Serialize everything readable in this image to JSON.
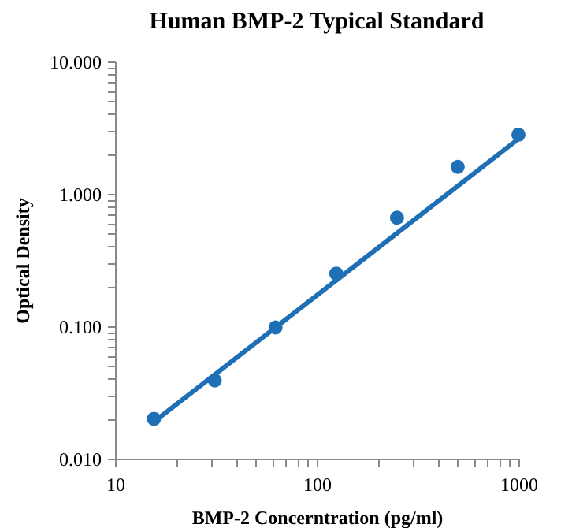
{
  "chart_data": {
    "type": "scatter",
    "title": "Human BMP-2 Typical Standard",
    "xlabel": "BMP-2 Concerntration (pg/ml)",
    "ylabel": "Optical Density",
    "log": "xy",
    "xlim": [
      10,
      1000
    ],
    "ylim": [
      0.01,
      10
    ],
    "xticks": [
      10,
      {
        "value": 20,
        "label": null
      },
      {
        "value": 30,
        "label": null
      },
      {
        "value": 40,
        "label": null
      },
      {
        "value": 50,
        "label": null
      },
      {
        "value": 60,
        "label": null
      },
      {
        "value": 70,
        "label": null
      },
      {
        "value": 80,
        "label": null
      },
      {
        "value": 90,
        "label": null
      },
      100,
      {
        "value": 200,
        "label": null
      },
      {
        "value": 300,
        "label": null
      },
      {
        "value": 400,
        "label": null
      },
      {
        "value": 500,
        "label": null
      },
      {
        "value": 600,
        "label": null
      },
      {
        "value": 700,
        "label": null
      },
      {
        "value": 800,
        "label": null
      },
      {
        "value": 900,
        "label": null
      },
      1000
    ],
    "yticks": [
      {
        "value": 0.01,
        "label": "0.010"
      },
      {
        "value": 0.02,
        "label": null
      },
      {
        "value": 0.03,
        "label": null
      },
      {
        "value": 0.04,
        "label": null
      },
      {
        "value": 0.05,
        "label": null
      },
      {
        "value": 0.06,
        "label": null
      },
      {
        "value": 0.07,
        "label": null
      },
      {
        "value": 0.08,
        "label": null
      },
      {
        "value": 0.09,
        "label": null
      },
      {
        "value": 0.1,
        "label": "0.100"
      },
      {
        "value": 0.2,
        "label": null
      },
      {
        "value": 0.3,
        "label": null
      },
      {
        "value": 0.4,
        "label": null
      },
      {
        "value": 0.5,
        "label": null
      },
      {
        "value": 0.6,
        "label": null
      },
      {
        "value": 0.7,
        "label": null
      },
      {
        "value": 0.8,
        "label": null
      },
      {
        "value": 0.9,
        "label": null
      },
      {
        "value": 1,
        "label": "1.000"
      },
      {
        "value": 2,
        "label": null
      },
      {
        "value": 3,
        "label": null
      },
      {
        "value": 4,
        "label": null
      },
      {
        "value": 5,
        "label": null
      },
      {
        "value": 6,
        "label": null
      },
      {
        "value": 7,
        "label": null
      },
      {
        "value": 8,
        "label": null
      },
      {
        "value": 9,
        "label": null
      },
      {
        "value": 10,
        "label": "10.000"
      }
    ],
    "series": [
      {
        "type": "line",
        "marker": "none",
        "color": "#1e6fb5",
        "x": [
          15.6,
          1000
        ],
        "values": [
          0.019,
          2.6
        ]
      },
      {
        "marker": "circle",
        "color": "#1e6fb5",
        "x": [
          15.6,
          31.25,
          62.5,
          125,
          250,
          500,
          1000
        ],
        "values": [
          0.02,
          0.039,
          0.098,
          0.25,
          0.66,
          1.6,
          2.8
        ]
      }
    ]
  }
}
